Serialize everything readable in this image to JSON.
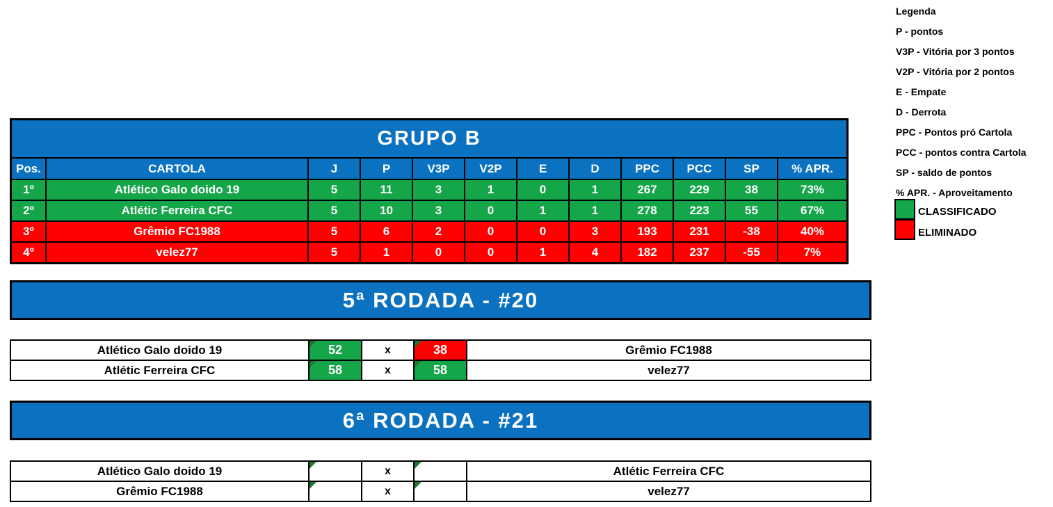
{
  "colors": {
    "banner_blue": "#0B72C1",
    "classified_green": "#16A64A",
    "eliminated_red": "#FF0000",
    "cell_note_triangle": "#1E7A31",
    "border_black": "#000000"
  },
  "legend": {
    "title": "Legenda",
    "items": [
      "P - pontos",
      "V3P - Vitória por 3 pontos",
      "V2P - Vitória por 2 pontos",
      "E - Empate",
      "D - Derrota",
      "PPC - Pontos pró Cartola",
      "PCC - pontos contra Cartola",
      "SP - saldo de pontos",
      "% APR. - Aproveitamento"
    ],
    "classified_label": "CLASSIFICADO",
    "eliminated_label": "ELIMINADO"
  },
  "group_table": {
    "title": "GRUPO B",
    "headers": [
      "Pos.",
      "CARTOLA",
      "J",
      "P",
      "V3P",
      "V2P",
      "E",
      "D",
      "PPC",
      "PCC",
      "SP",
      "% APR."
    ],
    "rows": [
      {
        "status": "classificado",
        "cells": [
          "1º",
          "Atlético Galo doido 19",
          "5",
          "11",
          "3",
          "1",
          "0",
          "1",
          "267",
          "229",
          "38",
          "73%"
        ]
      },
      {
        "status": "classificado",
        "cells": [
          "2º",
          "Atlétic Ferreira CFC",
          "5",
          "10",
          "3",
          "0",
          "1",
          "1",
          "278",
          "223",
          "55",
          "67%"
        ]
      },
      {
        "status": "eliminado",
        "cells": [
          "3º",
          "Grêmio FC1988",
          "5",
          "6",
          "2",
          "0",
          "0",
          "3",
          "193",
          "231",
          "-38",
          "40%"
        ]
      },
      {
        "status": "eliminado",
        "cells": [
          "4º",
          "velez77",
          "5",
          "1",
          "0",
          "0",
          "1",
          "4",
          "182",
          "237",
          "-55",
          "7%"
        ]
      }
    ]
  },
  "round5": {
    "banner": "5ª RODADA - #20",
    "separator": "x",
    "matches": [
      {
        "home": "Atlético Galo doido 19",
        "home_score": "52",
        "home_result": "win",
        "away_score": "38",
        "away_result": "loss",
        "away": "Grêmio FC1988"
      },
      {
        "home": "Atlétic Ferreira CFC",
        "home_score": "58",
        "home_result": "draw",
        "away_score": "58",
        "away_result": "draw",
        "away": "velez77"
      }
    ]
  },
  "round6": {
    "banner": "6ª RODADA - #21",
    "separator": "x",
    "matches": [
      {
        "home": "Atlético Galo doido 19",
        "home_score": "",
        "away_score": "",
        "away": "Atlétic Ferreira CFC"
      },
      {
        "home": "Grêmio FC1988",
        "home_score": "",
        "away_score": "",
        "away": "velez77"
      }
    ]
  }
}
